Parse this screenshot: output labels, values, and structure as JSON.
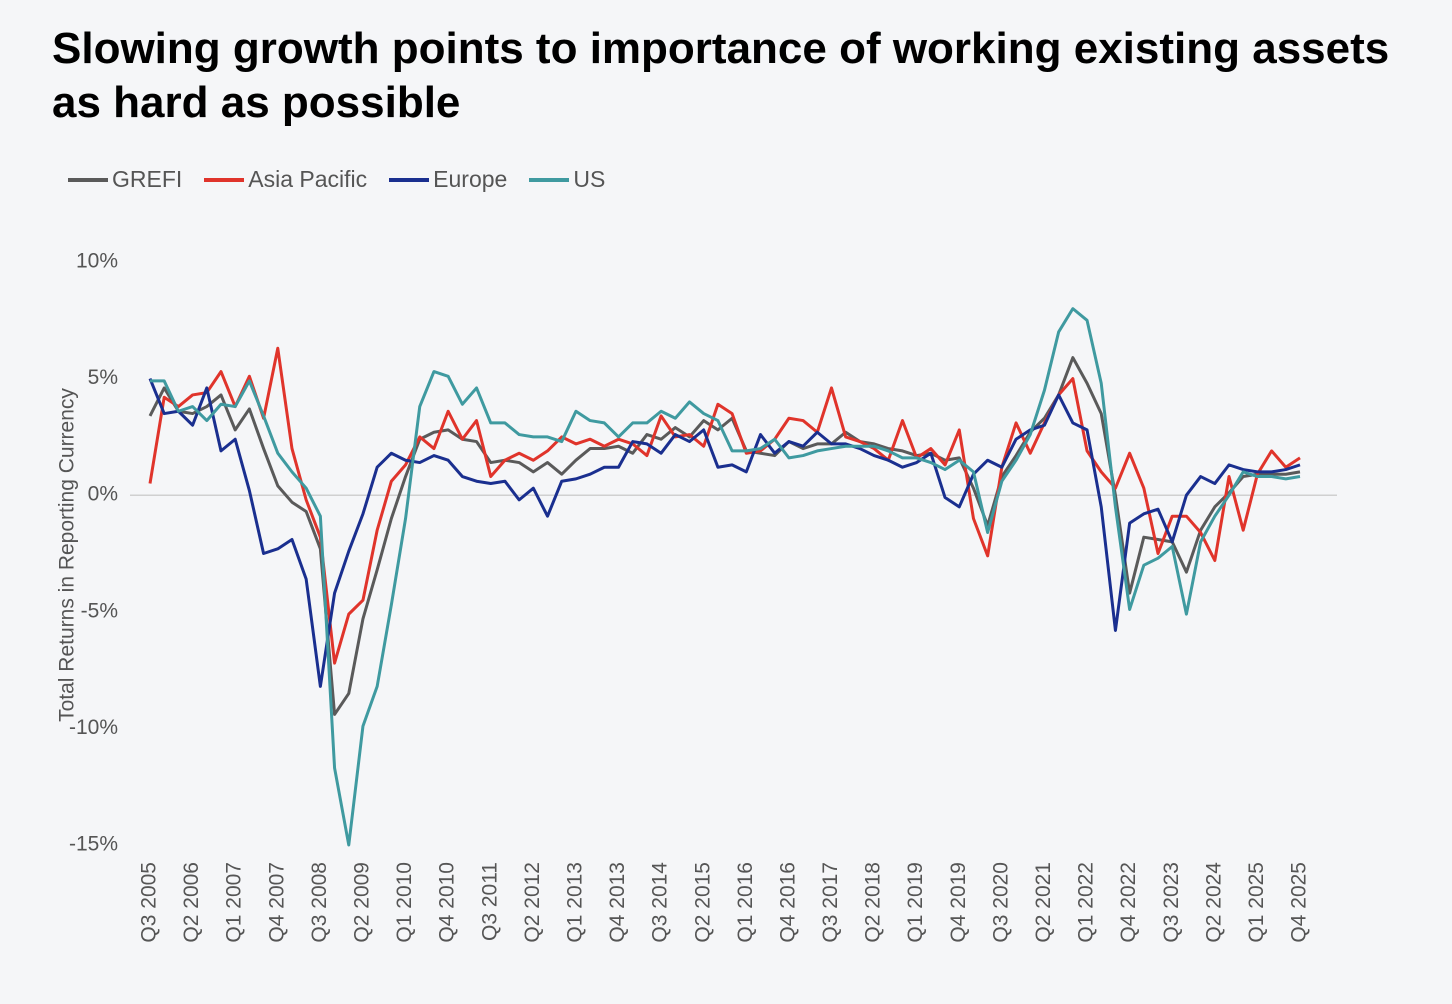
{
  "chart_data": {
    "type": "line",
    "title": "Slowing growth points to importance of working existing assets as hard as possible",
    "y_label": "Total Returns in Reporting Currency",
    "legend": "top-left",
    "baseline": 0,
    "ylim": [
      -15,
      10
    ],
    "yticks": [
      {
        "value": 10,
        "label": "10%"
      },
      {
        "value": 5,
        "label": "5%"
      },
      {
        "value": 0,
        "label": "0%"
      },
      {
        "value": -5,
        "label": "-5%"
      },
      {
        "value": -10,
        "label": "-10%"
      },
      {
        "value": -15,
        "label": "-15%"
      }
    ],
    "categories": [
      "Q3 2005",
      null,
      null,
      "Q2 2006",
      null,
      null,
      "Q1 2007",
      null,
      null,
      "Q4 2007",
      null,
      null,
      "Q3 2008",
      null,
      null,
      "Q2 2009",
      null,
      null,
      "Q1 2010",
      null,
      null,
      "Q4 2010",
      null,
      null,
      "Q3 2011",
      null,
      null,
      "Q2 2012",
      null,
      null,
      "Q1 2013",
      null,
      null,
      "Q4 2013",
      null,
      null,
      "Q3 2014",
      null,
      null,
      "Q2 2015",
      null,
      null,
      "Q1 2016",
      null,
      null,
      "Q4 2016",
      null,
      null,
      "Q3 2017",
      null,
      null,
      "Q2 2018",
      null,
      null,
      "Q1 2019",
      null,
      null,
      "Q4 2019",
      null,
      null,
      "Q3 2020",
      null,
      null,
      "Q2 2021",
      null,
      null,
      "Q1 2022",
      null,
      null,
      "Q4 2022",
      null,
      null,
      "Q3 2023",
      null,
      null,
      "Q2 2024",
      null,
      null,
      "Q1 2025",
      null,
      null,
      "Q4 2025"
    ],
    "series": [
      {
        "name": "GREFI",
        "color": "#5a5a5a",
        "values": [
          3.4,
          4.6,
          3.6,
          3.5,
          3.8,
          4.3,
          2.8,
          3.7,
          2.0,
          0.4,
          -0.3,
          -0.7,
          -2.3,
          -9.4,
          -8.5,
          -5.3,
          -3.2,
          -1.0,
          0.8,
          2.4,
          2.7,
          2.8,
          2.4,
          2.3,
          1.4,
          1.5,
          1.4,
          1.0,
          1.4,
          0.9,
          1.5,
          2.0,
          2.0,
          2.1,
          1.8,
          2.6,
          2.4,
          2.9,
          2.5,
          3.2,
          2.8,
          3.3,
          1.9,
          1.8,
          1.7,
          2.3,
          2.0,
          2.2,
          2.2,
          2.7,
          2.3,
          2.2,
          2.0,
          1.9,
          1.7,
          1.8,
          1.5,
          1.6,
          0.3,
          -1.3,
          0.8,
          1.7,
          2.7,
          3.3,
          4.3,
          5.9,
          4.8,
          3.5,
          0.0,
          -4.2,
          -1.8,
          -1.9,
          -2.0,
          -3.3,
          -1.5,
          -0.5,
          0.1,
          0.8,
          0.9,
          0.9,
          0.9,
          1.0
        ]
      },
      {
        "name": "Asia Pacific",
        "color": "#e0342b",
        "values": [
          0.5,
          4.2,
          3.8,
          4.3,
          4.4,
          5.3,
          3.8,
          5.1,
          3.3,
          6.3,
          2.0,
          -0.2,
          -1.8,
          -7.2,
          -5.1,
          -4.5,
          -1.5,
          0.6,
          1.3,
          2.5,
          2.0,
          3.6,
          2.4,
          3.2,
          0.8,
          1.5,
          1.8,
          1.5,
          1.9,
          2.5,
          2.2,
          2.4,
          2.1,
          2.4,
          2.2,
          1.7,
          3.4,
          2.5,
          2.6,
          2.1,
          3.9,
          3.5,
          1.8,
          1.9,
          2.4,
          3.3,
          3.2,
          2.7,
          4.6,
          2.5,
          2.3,
          2.0,
          1.5,
          3.2,
          1.6,
          2.0,
          1.3,
          2.8,
          -1.0,
          -2.6,
          1.2,
          3.1,
          1.8,
          3.1,
          4.3,
          5.0,
          1.9,
          1.0,
          0.3,
          1.8,
          0.3,
          -2.5,
          -0.9,
          -0.9,
          -1.6,
          -2.8,
          0.8,
          -1.5,
          0.9,
          1.9,
          1.2,
          1.6
        ]
      },
      {
        "name": "Europe",
        "color": "#1a2f8f",
        "values": [
          5.0,
          3.5,
          3.6,
          3.0,
          4.6,
          1.9,
          2.4,
          0.2,
          -2.5,
          -2.3,
          -1.9,
          -3.6,
          -8.2,
          -4.2,
          -2.4,
          -0.8,
          1.2,
          1.8,
          1.5,
          1.4,
          1.7,
          1.5,
          0.8,
          0.6,
          0.5,
          0.6,
          -0.2,
          0.3,
          -0.9,
          0.6,
          0.7,
          0.9,
          1.2,
          1.2,
          2.3,
          2.2,
          1.8,
          2.6,
          2.3,
          2.8,
          1.2,
          1.3,
          1.0,
          2.6,
          1.8,
          2.3,
          2.1,
          2.7,
          2.2,
          2.2,
          2.0,
          1.7,
          1.5,
          1.2,
          1.4,
          1.8,
          -0.1,
          -0.5,
          0.9,
          1.5,
          1.2,
          2.4,
          2.8,
          3.0,
          4.3,
          3.1,
          2.8,
          -0.5,
          -5.8,
          -1.2,
          -0.8,
          -0.6,
          -2.0,
          0.0,
          0.8,
          0.5,
          1.3,
          1.1,
          1.0,
          1.0,
          1.1,
          1.3
        ]
      },
      {
        "name": "US",
        "color": "#3f9aa0",
        "values": [
          4.9,
          4.9,
          3.6,
          3.8,
          3.2,
          3.9,
          3.8,
          4.9,
          3.4,
          1.8,
          1.0,
          0.3,
          -0.9,
          -11.7,
          -15.0,
          -9.9,
          -8.2,
          -4.7,
          -1.0,
          3.8,
          5.3,
          5.1,
          3.9,
          4.6,
          3.1,
          3.1,
          2.6,
          2.5,
          2.5,
          2.3,
          3.6,
          3.2,
          3.1,
          2.5,
          3.1,
          3.1,
          3.6,
          3.3,
          4.0,
          3.5,
          3.2,
          1.9,
          1.9,
          2.0,
          2.4,
          1.6,
          1.7,
          1.9,
          2.0,
          2.1,
          2.1,
          2.1,
          1.9,
          1.6,
          1.6,
          1.4,
          1.1,
          1.5,
          1.0,
          -1.6,
          0.6,
          1.5,
          2.6,
          4.5,
          7.0,
          8.0,
          7.5,
          4.8,
          -0.5,
          -4.9,
          -3.0,
          -2.7,
          -2.2,
          -5.1,
          -2.0,
          -0.9,
          0.0,
          1.0,
          0.8,
          0.8,
          0.7,
          0.8
        ]
      }
    ]
  }
}
